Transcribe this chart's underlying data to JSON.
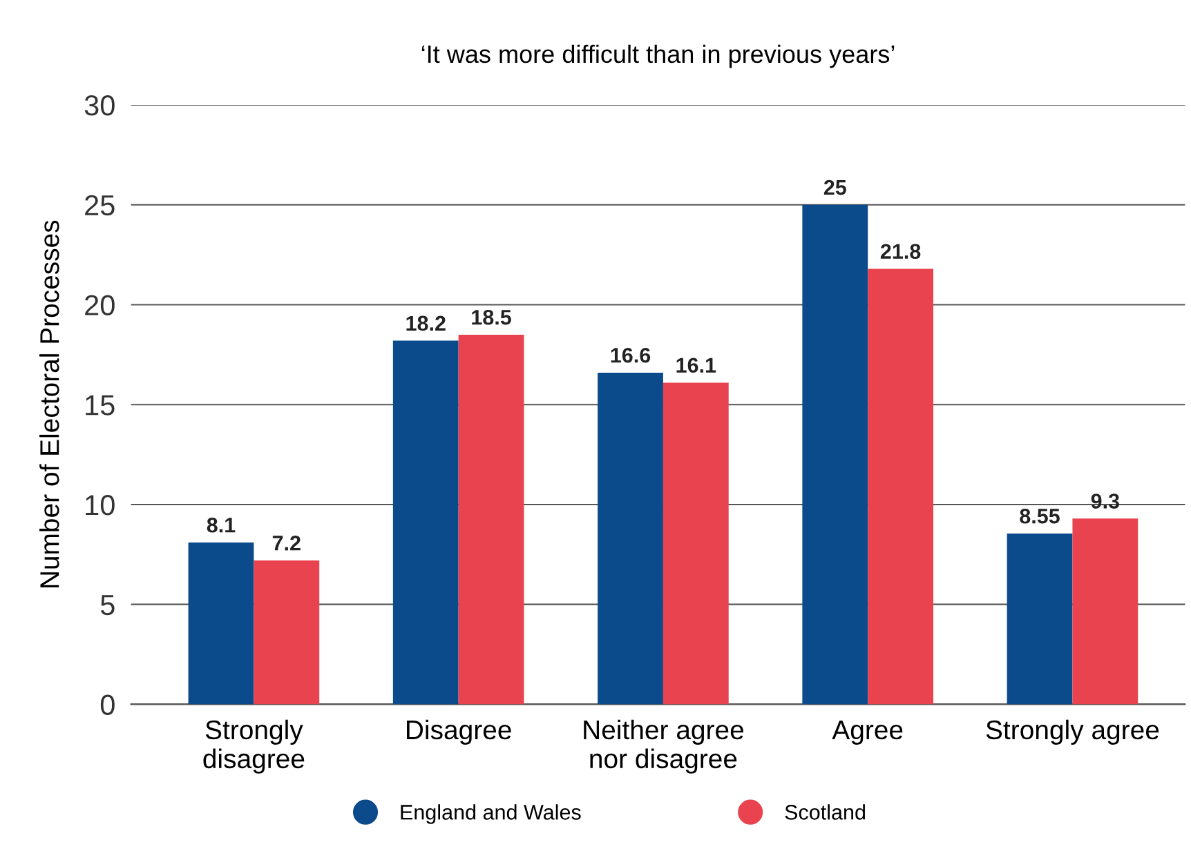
{
  "chart_data": {
    "type": "bar",
    "title": "‘It was more difficult than in previous years’",
    "ylabel": "Number of Electoral Processes",
    "categories": [
      "Strongly\ndisagree",
      "Disagree",
      "Neither agree\nnor disagree",
      "Agree",
      "Strongly agree"
    ],
    "series": [
      {
        "name": "England and Wales",
        "color": "#0b4a8b",
        "values": [
          8.1,
          18.2,
          16.6,
          25,
          8.55
        ]
      },
      {
        "name": "Scotland",
        "color": "#e8434f",
        "values": [
          7.2,
          18.5,
          16.1,
          21.8,
          9.3
        ]
      }
    ],
    "ylim": [
      0,
      30
    ],
    "yticks": [
      0,
      5,
      10,
      15,
      20,
      25,
      30
    ],
    "grid": "y",
    "legend": "bottom",
    "data_labels": true
  }
}
